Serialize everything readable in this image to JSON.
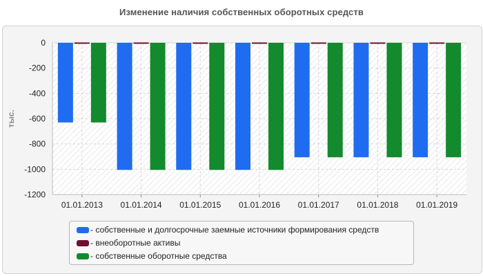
{
  "chart_data": {
    "type": "bar",
    "title": "Изменение наличия собственных оборотных средств",
    "ylabel": "тыс.",
    "xlabel": "",
    "categories": [
      "01.01.2013",
      "01.01.2014",
      "01.01.2015",
      "01.01.2016",
      "01.01.2017",
      "01.01.2018",
      "01.01.2019"
    ],
    "ylim": [
      -1200,
      0
    ],
    "yticks": [
      0,
      -200,
      -400,
      -600,
      -800,
      -1000,
      -1200
    ],
    "grid": true,
    "legend_position": "bottom",
    "series": [
      {
        "name": "- собственные и долгосрочные заемные источники формирования средств",
        "color": "#1f6cf0",
        "values": [
          -630,
          -1005,
          -1005,
          -1005,
          -905,
          -905,
          -905
        ]
      },
      {
        "name": "- внеоборотные активы",
        "color": "#6e1030",
        "values": [
          0,
          0,
          0,
          0,
          0,
          0,
          0
        ]
      },
      {
        "name": "- собственные оборотные средства",
        "color": "#138a2d",
        "values": [
          -630,
          -1005,
          -1005,
          -1005,
          -905,
          -905,
          -905
        ]
      }
    ]
  }
}
